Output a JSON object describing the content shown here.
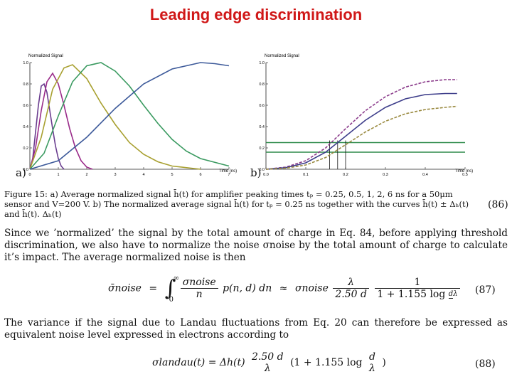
{
  "slide": {
    "title": "Leading edge discrimination"
  },
  "figure": {
    "panel_a_label": "a)",
    "panel_b_label": "b)",
    "caption": "Figure 15: a) Average normalized signal h̄(t) for amplifier peaking times tₚ = 0.25, 0.5, 1, 2, 6 ns for a 50μm sensor and V=200 V. b) The normalized average signal h̄(t) for tₚ = 0.25 ns together with the curves h̄(t) ± Δₕ(t) and h̄(t).  Δₕ(t)",
    "caption_eq_number": "(86)"
  },
  "chart_data": [
    {
      "type": "line",
      "ylabel": "Normalized Signal",
      "xlabel": "Time (ns)",
      "xlim": [
        0,
        7
      ],
      "ylim": [
        0,
        1.0
      ],
      "x_ticks": [
        "0",
        "1",
        "2",
        "3",
        "4",
        "5",
        "6",
        "7"
      ],
      "y_ticks": [
        "0.0",
        "0.2",
        "0.4",
        "0.6",
        "0.8",
        "1.0"
      ],
      "series": [
        {
          "color": "#6a3d8f",
          "values": [
            [
              0,
              0
            ],
            [
              0.1,
              0.1
            ],
            [
              0.2,
              0.35
            ],
            [
              0.3,
              0.6
            ],
            [
              0.4,
              0.78
            ],
            [
              0.5,
              0.8
            ],
            [
              0.6,
              0.72
            ],
            [
              0.7,
              0.55
            ],
            [
              0.8,
              0.38
            ],
            [
              0.9,
              0.22
            ],
            [
              1.0,
              0.1
            ],
            [
              1.1,
              0.03
            ],
            [
              1.2,
              0
            ]
          ]
        },
        {
          "color": "#9a2c8a",
          "values": [
            [
              0,
              0
            ],
            [
              0.2,
              0.2
            ],
            [
              0.4,
              0.55
            ],
            [
              0.6,
              0.82
            ],
            [
              0.8,
              0.9
            ],
            [
              1.0,
              0.8
            ],
            [
              1.2,
              0.6
            ],
            [
              1.4,
              0.38
            ],
            [
              1.6,
              0.2
            ],
            [
              1.8,
              0.08
            ],
            [
              2.0,
              0.02
            ],
            [
              2.2,
              0
            ]
          ]
        },
        {
          "color": "#a8a030",
          "values": [
            [
              0,
              0
            ],
            [
              0.4,
              0.3
            ],
            [
              0.8,
              0.75
            ],
            [
              1.2,
              0.95
            ],
            [
              1.5,
              0.98
            ],
            [
              2.0,
              0.85
            ],
            [
              2.5,
              0.62
            ],
            [
              3.0,
              0.42
            ],
            [
              3.5,
              0.25
            ],
            [
              4.0,
              0.14
            ],
            [
              4.5,
              0.07
            ],
            [
              5.0,
              0.03
            ],
            [
              6.0,
              0
            ]
          ]
        },
        {
          "color": "#3a9a60",
          "values": [
            [
              0,
              0
            ],
            [
              0.5,
              0.15
            ],
            [
              1.0,
              0.5
            ],
            [
              1.5,
              0.82
            ],
            [
              2.0,
              0.97
            ],
            [
              2.5,
              1.0
            ],
            [
              3.0,
              0.92
            ],
            [
              3.5,
              0.78
            ],
            [
              4.0,
              0.6
            ],
            [
              4.5,
              0.43
            ],
            [
              5.0,
              0.28
            ],
            [
              5.5,
              0.17
            ],
            [
              6.0,
              0.1
            ],
            [
              7.0,
              0.03
            ]
          ]
        },
        {
          "color": "#3d5a9a",
          "values": [
            [
              0,
              0
            ],
            [
              1.0,
              0.08
            ],
            [
              2.0,
              0.3
            ],
            [
              3.0,
              0.57
            ],
            [
              4.0,
              0.8
            ],
            [
              5.0,
              0.94
            ],
            [
              6.0,
              1.0
            ],
            [
              6.5,
              0.99
            ],
            [
              7.0,
              0.97
            ]
          ]
        }
      ]
    },
    {
      "type": "line",
      "ylabel": "Normalized Signal",
      "xlabel": "Time (ns)",
      "xlim": [
        0,
        0.5
      ],
      "ylim": [
        0,
        1.0
      ],
      "x_ticks": [
        "0.0",
        "0.1",
        "0.2",
        "0.3",
        "0.4",
        "0.5"
      ],
      "y_ticks": [
        "0.0",
        "0.2",
        "0.4",
        "0.6",
        "0.8",
        "1.0"
      ],
      "series": [
        {
          "color": "#8a3a8a",
          "dashed": true,
          "values": [
            [
              0,
              0
            ],
            [
              0.05,
              0.02
            ],
            [
              0.1,
              0.08
            ],
            [
              0.15,
              0.2
            ],
            [
              0.2,
              0.38
            ],
            [
              0.25,
              0.55
            ],
            [
              0.3,
              0.68
            ],
            [
              0.35,
              0.77
            ],
            [
              0.4,
              0.82
            ],
            [
              0.45,
              0.84
            ],
            [
              0.48,
              0.84
            ]
          ]
        },
        {
          "color": "#3d3d8a",
          "values": [
            [
              0,
              0
            ],
            [
              0.05,
              0.015
            ],
            [
              0.1,
              0.06
            ],
            [
              0.15,
              0.16
            ],
            [
              0.2,
              0.31
            ],
            [
              0.25,
              0.46
            ],
            [
              0.3,
              0.58
            ],
            [
              0.35,
              0.66
            ],
            [
              0.4,
              0.7
            ],
            [
              0.45,
              0.71
            ],
            [
              0.48,
              0.71
            ]
          ]
        },
        {
          "color": "#9a8a40",
          "dashed": true,
          "values": [
            [
              0,
              0
            ],
            [
              0.05,
              0.01
            ],
            [
              0.1,
              0.04
            ],
            [
              0.15,
              0.11
            ],
            [
              0.2,
              0.23
            ],
            [
              0.25,
              0.35
            ],
            [
              0.3,
              0.45
            ],
            [
              0.35,
              0.52
            ],
            [
              0.4,
              0.56
            ],
            [
              0.45,
              0.58
            ],
            [
              0.48,
              0.59
            ]
          ]
        }
      ],
      "threshold_lines": [
        {
          "color": "#2e8a4a",
          "y": 0.25
        },
        {
          "color": "#2e8a4a",
          "y": 0.16
        }
      ],
      "marker_lines": [
        {
          "x": 0.16
        },
        {
          "x": 0.18
        },
        {
          "x": 0.2
        }
      ]
    }
  ],
  "text": {
    "para1": "Since we ’normalized’ the signal by the total amount of charge in Eq.  84, before applying threshold discrimination, we also have to normalize the noise σnoise by the total amount of charge to calculate it’s impact. The average normalized noise is then",
    "para2": "The variance if the signal due to Landau fluctuations from Eq.  20 can therefore be expressed as equivalent noise level expressed in electrons according to"
  },
  "equations": {
    "eq87_number": "(87)",
    "eq88_number": "(88)",
    "eq87_lhs": "σ̄noise",
    "eq87_int_upper": "∞",
    "eq87_int_lower": "0",
    "eq87_num": "σnoise",
    "eq87_den": "n",
    "eq87_rest": "p(n, d) dn",
    "eq87_approx": "σnoise",
    "eq87_lambda": "λ",
    "eq87_den2": "2.50 d",
    "eq87_one": "1",
    "eq87_den3": "1 + 1.155 log",
    "eq87_d": "d",
    "eq87_l": "λ",
    "eq88_lhs": "σlandau(t) = Δh(t)",
    "eq88_num": "2.50 d",
    "eq88_den": "λ",
    "eq88_mid": "(1 + 1.155 log",
    "eq88_d": "d",
    "eq88_l": "λ",
    "eq88_close": ")"
  }
}
